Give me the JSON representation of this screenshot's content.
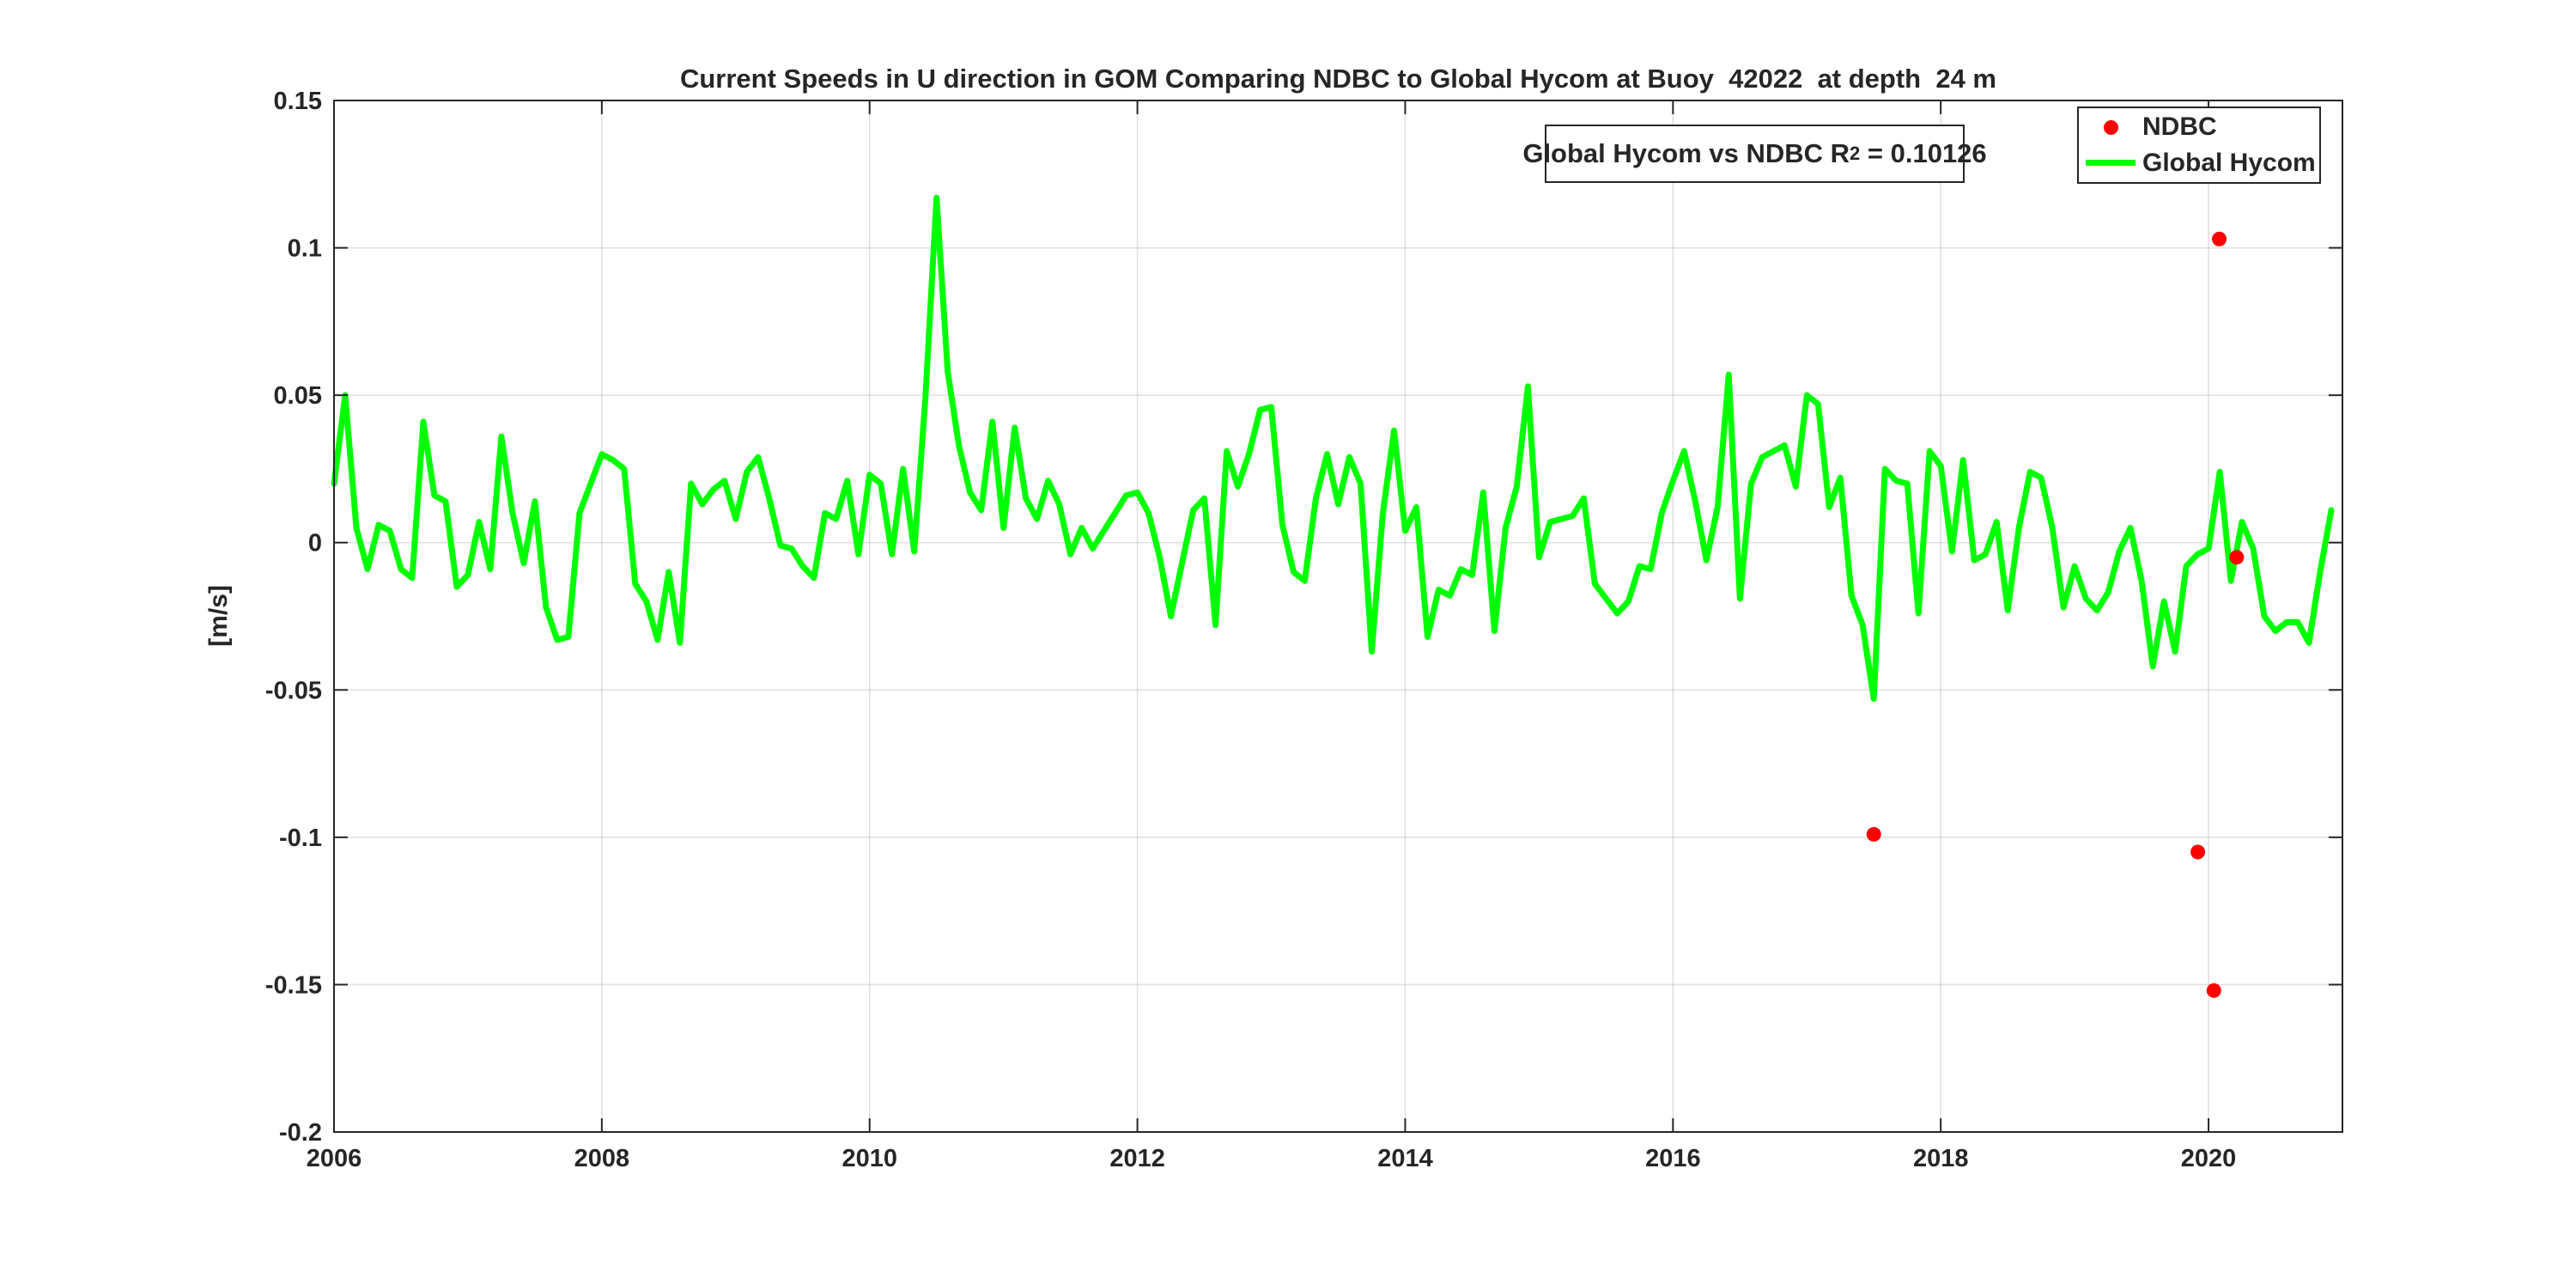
{
  "header": {
    "title": "Current Speeds in U direction in GOM Comparing NDBC to Global Hycom at Buoy  42022  at depth  24 m"
  },
  "axes": {
    "ylabel": "[m/s]"
  },
  "annotation_box": {
    "prefix": "Global Hycom vs NDBC R",
    "sup": "2",
    "suffix": " = 0.10126"
  },
  "legend": {
    "position": "northeast",
    "items": [
      {
        "label": "NDBC",
        "marker": "dot",
        "color": "#ff0000"
      },
      {
        "label": "Global Hycom",
        "marker": "line",
        "color": "#00ff00"
      }
    ]
  },
  "colors": {
    "axis": "#262626",
    "grid": "rgba(38,38,38,0.15)",
    "ndbc": "#ff0000",
    "hycom": "#00ff00",
    "background": "#ffffff"
  },
  "chart_data": {
    "type": "line",
    "title": "Current Speeds in U direction in GOM Comparing NDBC to Global Hycom at Buoy  42022  at depth  24 m",
    "xlabel": "",
    "ylabel": "[m/s]",
    "xlim": [
      2006,
      2021
    ],
    "ylim": [
      -0.2,
      0.15
    ],
    "grid": true,
    "legend_position": "northeast",
    "r_squared": 0.10126,
    "xticks": [
      {
        "v": 2006,
        "label": "2006"
      },
      {
        "v": 2008,
        "label": "2008"
      },
      {
        "v": 2010,
        "label": "2010"
      },
      {
        "v": 2012,
        "label": "2012"
      },
      {
        "v": 2014,
        "label": "2014"
      },
      {
        "v": 2016,
        "label": "2016"
      },
      {
        "v": 2018,
        "label": "2018"
      },
      {
        "v": 2020,
        "label": "2020"
      }
    ],
    "yticks": [
      {
        "v": 0.15,
        "label": "0.15"
      },
      {
        "v": 0.1,
        "label": "0.1"
      },
      {
        "v": 0.05,
        "label": "0.05"
      },
      {
        "v": 0,
        "label": "0"
      },
      {
        "v": -0.05,
        "label": "-0.05"
      },
      {
        "v": -0.1,
        "label": "-0.1"
      },
      {
        "v": -0.15,
        "label": "-0.15"
      },
      {
        "v": -0.2,
        "label": "-0.2"
      }
    ],
    "series": [
      {
        "name": "Global Hycom",
        "type": "line",
        "color": "#00ff00",
        "line_width": 7,
        "x_start": 2006.0,
        "x_step_years": 0.0833333,
        "values": [
          0.02,
          0.05,
          0.005,
          -0.009,
          0.006,
          0.004,
          -0.009,
          -0.012,
          0.041,
          0.016,
          0.014,
          -0.015,
          -0.011,
          0.007,
          -0.009,
          0.036,
          0.01,
          -0.007,
          0.014,
          -0.022,
          -0.033,
          -0.032,
          0.01,
          0.02,
          0.03,
          0.028,
          0.025,
          -0.014,
          -0.02,
          -0.033,
          -0.01,
          -0.034,
          0.02,
          0.013,
          0.018,
          0.021,
          0.008,
          0.024,
          0.029,
          0.015,
          -0.001,
          -0.002,
          -0.008,
          -0.012,
          0.01,
          0.008,
          0.021,
          -0.004,
          0.023,
          0.02,
          -0.004,
          0.025,
          -0.003,
          0.049,
          0.117,
          0.058,
          0.033,
          0.017,
          0.011,
          0.041,
          0.005,
          0.039,
          0.015,
          0.008,
          0.021,
          0.013,
          -0.004,
          0.005,
          -0.002,
          0.004,
          0.01,
          0.016,
          0.017,
          0.01,
          -0.005,
          -0.025,
          -0.007,
          0.011,
          0.015,
          -0.028,
          0.031,
          0.019,
          0.03,
          0.045,
          0.046,
          0.006,
          -0.01,
          -0.013,
          0.015,
          0.03,
          0.013,
          0.029,
          0.02,
          -0.037,
          0.01,
          0.038,
          0.004,
          0.012,
          -0.032,
          -0.016,
          -0.018,
          -0.009,
          -0.011,
          0.017,
          -0.03,
          0.005,
          0.019,
          0.053,
          -0.005,
          0.007,
          0.008,
          0.009,
          0.015,
          -0.014,
          -0.019,
          -0.024,
          -0.02,
          -0.008,
          -0.009,
          0.01,
          0.021,
          0.031,
          0.014,
          -0.006,
          0.012,
          0.057,
          -0.019,
          0.02,
          0.029,
          0.031,
          0.033,
          0.019,
          0.05,
          0.047,
          0.012,
          0.022,
          -0.018,
          -0.028,
          -0.053,
          0.025,
          0.021,
          0.02,
          -0.024,
          0.031,
          0.026,
          -0.003,
          0.028,
          -0.006,
          -0.004,
          0.007,
          -0.023,
          0.005,
          0.024,
          0.022,
          0.005,
          -0.022,
          -0.008,
          -0.019,
          -0.023,
          -0.017,
          -0.003,
          0.005,
          -0.013,
          -0.042,
          -0.02,
          -0.037,
          -0.008,
          -0.004,
          -0.002,
          0.024,
          -0.013,
          0.007,
          -0.002,
          -0.025,
          -0.03,
          -0.027,
          -0.027,
          -0.034,
          -0.01,
          0.011
        ]
      },
      {
        "name": "NDBC",
        "type": "scatter",
        "color": "#ff0000",
        "marker": "filled-circle",
        "points": [
          [
            2017.5,
            -0.099
          ],
          [
            2019.92,
            -0.105
          ],
          [
            2020.04,
            -0.152
          ],
          [
            2020.08,
            0.103
          ],
          [
            2020.21,
            -0.005
          ]
        ]
      }
    ]
  }
}
